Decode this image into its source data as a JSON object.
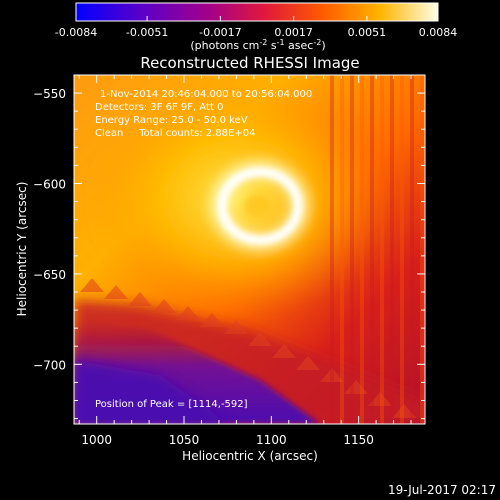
{
  "colorbar": {
    "ticks": [
      "-0.0084",
      "-0.0051",
      "-0.0017",
      "0.0017",
      "0.0051",
      "0.0084"
    ],
    "units_main": "(photons cm",
    "units_exp1": "-2",
    "units_mid": " s",
    "units_exp2": "-1",
    "units_end": " asec",
    "units_exp3": "-2",
    "units_close": ")",
    "vmin": -0.0084,
    "vmax": 0.0084
  },
  "image": {
    "title": "Reconstructed RHESSI Image",
    "info_lines": [
      "1-Nov-2014 20:46:04.000 to 20:56:04.000",
      "Detectors: 3F 6F 9F, Att 0",
      "Energy Range: 25.0 - 50.0 keV",
      "Clean     Total counts: 2.88E+04"
    ],
    "peak_text": "Position of Peak = [1114,-592]"
  },
  "chart_data": {
    "type": "heatmap",
    "title": "Reconstructed RHESSI Image",
    "xlabel": "Heliocentric X (arcsec)",
    "ylabel": "Heliocentric Y (arcsec)",
    "xlim": [
      987,
      1188
    ],
    "ylim": [
      -733,
      -540
    ],
    "xticks": [
      1000,
      1050,
      1100,
      1150
    ],
    "yticks": [
      -550,
      -600,
      -650,
      -700
    ],
    "peak": [
      1114,
      -592
    ],
    "colorscale": "hot (blue-purple-red-orange-yellow-white)",
    "value_range": [
      -0.0084,
      0.0084
    ]
  },
  "footer": {
    "timestamp": "19-Jul-2017 02:17"
  }
}
